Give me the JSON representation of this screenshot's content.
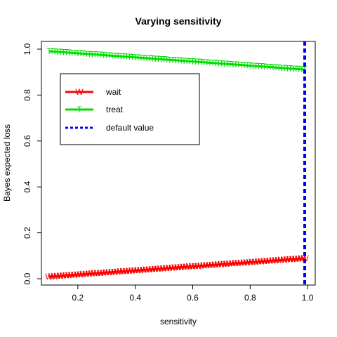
{
  "chart_data": {
    "type": "line",
    "title": "Varying sensitivity",
    "xlabel": "sensitivity",
    "ylabel": "Bayes expected loss",
    "xlim": [
      0.1,
      0.99
    ],
    "ylim": [
      0,
      1
    ],
    "x_ticks": [
      {
        "value": 0.2,
        "label": "0.2"
      },
      {
        "value": 0.4,
        "label": "0.4"
      },
      {
        "value": 0.6,
        "label": "0.6"
      },
      {
        "value": 0.8,
        "label": "0.8"
      },
      {
        "value": 1.0,
        "label": "1.0"
      }
    ],
    "y_ticks": [
      {
        "value": 0.0,
        "label": "0.0"
      },
      {
        "value": 0.2,
        "label": "0.2"
      },
      {
        "value": 0.4,
        "label": "0.4"
      },
      {
        "value": 0.6,
        "label": "0.6"
      },
      {
        "value": 0.8,
        "label": "0.8"
      },
      {
        "value": 1.0,
        "label": "1.0"
      }
    ],
    "x_start": 0.1,
    "x_end": 0.99,
    "x_step": 0.01,
    "series": [
      {
        "name": "wait",
        "marker": "W",
        "color": "#ff0000",
        "y_start": 0.009,
        "y_end": 0.089
      },
      {
        "name": "treat",
        "marker": "T",
        "color": "#00dd00",
        "y_start": 0.991,
        "y_end": 0.911
      }
    ],
    "vline": {
      "name": "default value",
      "x": 0.99,
      "color": "#0000ff",
      "style": "dashed"
    },
    "legend": {
      "position": "top-left"
    },
    "grid": false
  }
}
